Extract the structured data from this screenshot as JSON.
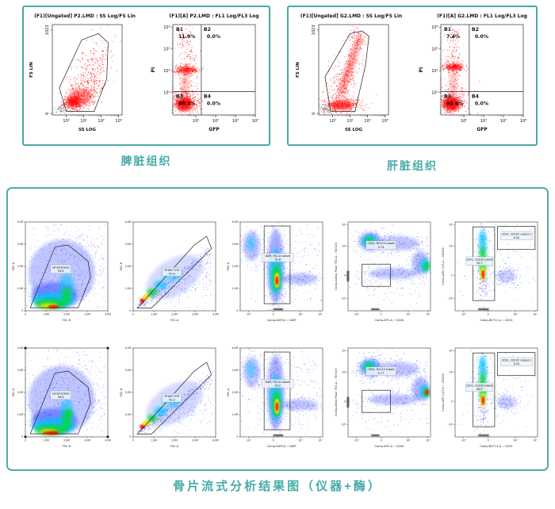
{
  "accent_color": "#46a9a6",
  "captions": {
    "spleen": "脾脏组织",
    "liver": "肝脏组织",
    "bottom": "骨片流式分析结果图（仪器+酶）"
  },
  "chart_data": {
    "top_flow_panels": [
      {
        "panel": "spleen",
        "caption": "脾脏组织",
        "plots": [
          {
            "type": "scatter",
            "title": "(F1)[Ungated] P2.LMD : SS Log/FS Lin",
            "xlabel": "SS LOG",
            "ylabel": "FS LIN",
            "xticks": [
              "10⁰",
              "10¹",
              "10²",
              "10³"
            ],
            "yticks": [
              "1023",
              "0"
            ],
            "points_color": "#ff0000",
            "gate": "polygon gate A around main red population"
          },
          {
            "type": "quadrant-scatter",
            "title": "(F1)[A] P2.LMD : FL1 Log/FL3 Log",
            "xlabel": "GFP",
            "ylabel": "PI",
            "xticks": [
              "10⁰",
              "10¹",
              "10²",
              "10³"
            ],
            "yticks": [
              "10³",
              "10²",
              "10¹",
              "10⁰"
            ],
            "quadrants": [
              {
                "name": "B1",
                "percent": "11.9%"
              },
              {
                "name": "B2",
                "percent": "0.0%"
              },
              {
                "name": "B3",
                "percent": "88.1%"
              },
              {
                "name": "B4",
                "percent": "0.0%"
              }
            ]
          }
        ]
      },
      {
        "panel": "liver",
        "caption": "肝脏组织",
        "plots": [
          {
            "type": "scatter",
            "title": "(F1)[Ungated] G2.LMD : SS Log/FS Lin",
            "xlabel": "SS LOG",
            "ylabel": "FS LIN",
            "xticks": [
              "10⁰",
              "10¹",
              "10²",
              "10³"
            ],
            "yticks": [
              "1023",
              "0"
            ],
            "points_color": "#ff0000",
            "gate": "polygon gate A around main red population"
          },
          {
            "type": "quadrant-scatter",
            "title": "(F1)[A] G2.LMD : FL1 Log/FL3 Log",
            "xlabel": "GFP",
            "ylabel": "PI",
            "xticks": [
              "10⁰",
              "10¹",
              "10²",
              "10³"
            ],
            "yticks": [
              "10³",
              "10²",
              "10¹",
              "10⁰"
            ],
            "quadrants": [
              {
                "name": "B1",
                "percent": "7.4%"
              },
              {
                "name": "B2",
                "percent": "0.0%"
              },
              {
                "name": "B3",
                "percent": "92.6%"
              },
              {
                "name": "B4",
                "percent": "0.0%"
              }
            ]
          }
        ]
      }
    ],
    "bone_chip_grid": {
      "caption": "骨片流式分析结果图（仪器+酶）",
      "rows": 2,
      "cols": 5,
      "plots": [
        {
          "row": 1,
          "col": 1,
          "type": "density",
          "xlabel": "FSC-H",
          "ylabel": "SSC-A",
          "xticks": [
            "0",
            "1.0M",
            "2.0M",
            "3.0M",
            "4.0M"
          ],
          "yticks": [
            "4.0M",
            "3.0M",
            "2.0M",
            "1.0M",
            "0"
          ],
          "gates": [
            {
              "name": "Lymphocytes",
              "percent": "93.8"
            }
          ]
        },
        {
          "row": 1,
          "col": 2,
          "type": "density",
          "xlabel": "FSC-A",
          "ylabel": "FSC-H",
          "xticks": [
            "0",
            "1.0M",
            "2.0M",
            "3.0M",
            "4.0M"
          ],
          "yticks": [
            "4.0M",
            "3.0M",
            "2.0M",
            "1.0M",
            "0"
          ],
          "gates": [
            {
              "name": "Single Cells",
              "percent": "87.6"
            }
          ]
        },
        {
          "row": 1,
          "col": 3,
          "type": "density",
          "xlabel": "Comp-DAPI-A :: DAPI",
          "ylabel": "FSC-A",
          "xticks": [
            "-10³",
            "0",
            "10⁴",
            "10⁵"
          ],
          "yticks": [
            "4.0M",
            "3.0M",
            "2.0M",
            "1.0M",
            "0"
          ],
          "gates": [
            {
              "name": "DAPI, FSC-A subset",
              "percent": "91.6"
            }
          ]
        },
        {
          "row": 1,
          "col": 4,
          "type": "density",
          "xlabel": "Comp-APC-A :: CD45",
          "ylabel": "Comp-Alexa Fluor 700-A :: Ter119",
          "xticks": [
            "-10³",
            "0",
            "10⁴",
            "10⁵"
          ],
          "yticks": [
            "10⁵",
            "10⁴",
            "0",
            "-10³"
          ],
          "gates": [
            {
              "name": "CD45, Ter119 subset",
              "percent": "0.74"
            }
          ]
        },
        {
          "row": 1,
          "col": 5,
          "type": "density",
          "xlabel": "Comp-BV711-A :: CD31",
          "ylabel": "Comp-APC-Cy7-A :: CD105",
          "xticks": [
            "-10³",
            "0",
            "10⁴",
            "10⁵"
          ],
          "yticks": [
            "10⁵",
            "10⁴",
            "0",
            "-10³"
          ],
          "gates": [
            {
              "name": "CD31, CD105 subset",
              "percent": "92.7"
            },
            {
              "name": "CD31, CD105 subset-1",
              "percent": "0.20"
            }
          ]
        },
        {
          "row": 2,
          "col": 1,
          "type": "density",
          "xlabel": "FSC-H",
          "ylabel": "SSC-A",
          "xticks": [
            "0",
            "1.0M",
            "2.0M",
            "3.0M",
            "4.0M"
          ],
          "yticks": [
            "4.0M",
            "3.0M",
            "2.0M",
            "1.0M",
            "0"
          ],
          "gates": [
            {
              "name": "Lymphocytes",
              "percent": "90.8"
            }
          ]
        },
        {
          "row": 2,
          "col": 2,
          "type": "density",
          "xlabel": "FSC-A",
          "ylabel": "FSC-H",
          "xticks": [
            "0",
            "1.0M",
            "2.0M",
            "3.0M",
            "4.0M"
          ],
          "yticks": [
            "4.0M",
            "3.0M",
            "2.0M",
            "1.0M",
            "0"
          ],
          "gates": [
            {
              "name": "Single Cells",
              "percent": "91.0"
            }
          ]
        },
        {
          "row": 2,
          "col": 3,
          "type": "density",
          "xlabel": "Comp-DAPI-A :: DAPI",
          "ylabel": "FSC-A",
          "xticks": [
            "-10³",
            "0",
            "10⁴",
            "10⁵"
          ],
          "yticks": [
            "4.0M",
            "3.0M",
            "2.0M",
            "1.0M",
            "0"
          ],
          "gates": [
            {
              "name": "DAPI, FSC-A subset",
              "percent": "93.2"
            }
          ]
        },
        {
          "row": 2,
          "col": 4,
          "type": "density",
          "xlabel": "Comp-APC-A :: CD45",
          "ylabel": "Comp-Alexa Fluor 700-A :: Ter119",
          "xticks": [
            "-10³",
            "0",
            "10⁴",
            "10⁵"
          ],
          "yticks": [
            "10⁵",
            "10⁴",
            "0",
            "-10³"
          ],
          "gates": [
            {
              "name": "CD45, Ter119 subset",
              "percent": "0.77"
            }
          ]
        },
        {
          "row": 2,
          "col": 5,
          "type": "density",
          "xlabel": "Comp-BV711-A :: CD31",
          "ylabel": "Comp-APC-Cy7-A :: CD105",
          "xticks": [
            "-10³",
            "0",
            "10⁴",
            "10⁵"
          ],
          "yticks": [
            "10⁵",
            "10⁴",
            "0",
            "-10³"
          ],
          "gates": [
            {
              "name": "CD31, CD105 subset",
              "percent": "88.9"
            },
            {
              "name": "CD31, CD105 subset-1",
              "percent": "0.25"
            }
          ]
        }
      ]
    }
  }
}
